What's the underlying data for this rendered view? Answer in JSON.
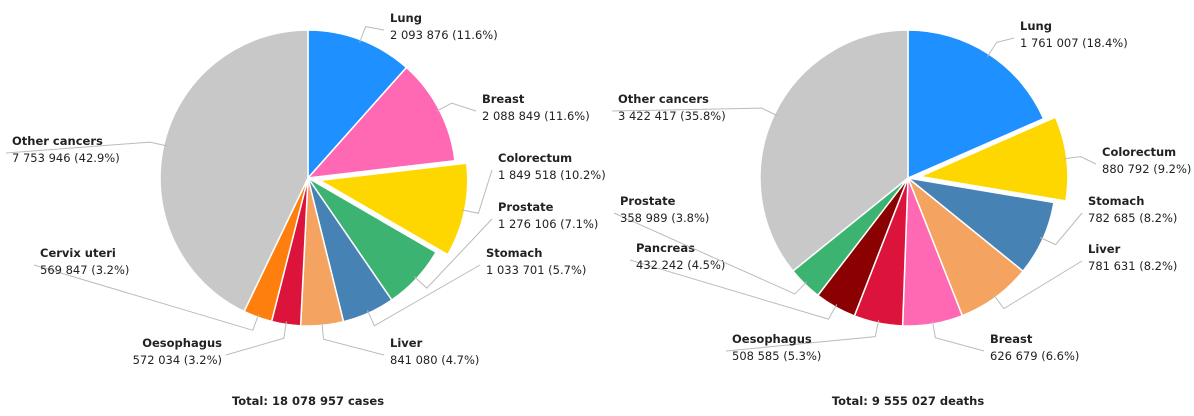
{
  "chart_data": [
    {
      "type": "pie",
      "total": "Total: 18 078 957 cases",
      "exploded_slice": 2,
      "categories": [
        "Lung",
        "Breast",
        "Colorectum",
        "Prostate",
        "Stomach",
        "Liver",
        "Oesophagus",
        "Cervix uteri",
        "Other cancers"
      ],
      "values": [
        2093876,
        2088849,
        1849518,
        1276106,
        1033701,
        841080,
        572034,
        569847,
        7753946
      ],
      "value_labels": [
        "2 093 876 (11.6%)",
        "2 088 849 (11.6%)",
        "1 849 518 (10.2%)",
        "1 276 106 (7.1%)",
        "1 033 701 (5.7%)",
        "841 080 (4.7%)",
        "572 034 (3.2%)",
        "569 847 (3.2%)",
        "7 753 946 (42.9%)"
      ],
      "colors": [
        "#1e90ff",
        "#ff69b4",
        "#ffd700",
        "#3cb371",
        "#4682b4",
        "#f4a460",
        "#dc143c",
        "#ff7f0e",
        "#c8c8c8"
      ]
    },
    {
      "type": "pie",
      "total": "Total: 9 555 027 deaths",
      "exploded_slice": 1,
      "categories": [
        "Lung",
        "Colorectum",
        "Stomach",
        "Liver",
        "Breast",
        "Oesophagus",
        "Pancreas",
        "Prostate",
        "Other cancers"
      ],
      "values": [
        1761007,
        880792,
        782685,
        781631,
        626679,
        508585,
        432242,
        358989,
        3422417
      ],
      "value_labels": [
        "1 761 007 (18.4%)",
        "880 792 (9.2%)",
        "782 685 (8.2%)",
        "781 631 (8.2%)",
        "626 679 (6.6%)",
        "508 585 (5.3%)",
        "432 242 (4.5%)",
        "358 989 (3.8%)",
        "3 422 417 (35.8%)"
      ],
      "colors": [
        "#1e90ff",
        "#ffd700",
        "#4682b4",
        "#f4a460",
        "#ff69b4",
        "#dc143c",
        "#8b0000",
        "#3cb371",
        "#c8c8c8"
      ]
    }
  ]
}
